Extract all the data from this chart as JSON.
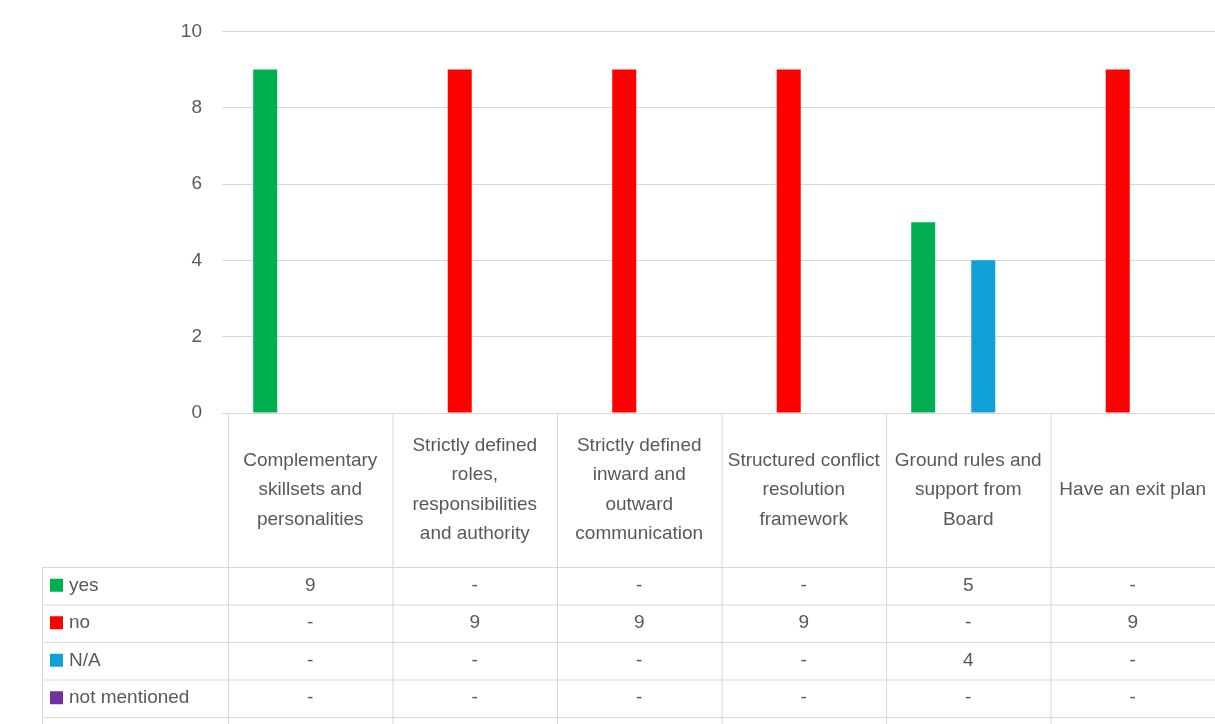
{
  "chart_data": {
    "type": "bar",
    "categories": [
      "Complementary skillsets and personalities",
      "Strictly defined roles, responsibilities and authority",
      "Strictly defined inward and outward communication",
      "Structured conflict resolution framework",
      "Ground rules and support from Board",
      "Have an exit plan"
    ],
    "series": [
      {
        "name": "yes",
        "color": "#00b050",
        "values": [
          9,
          0,
          0,
          0,
          5,
          0
        ],
        "value_labels": [
          "9",
          "-",
          "-",
          "-",
          "5",
          "-"
        ]
      },
      {
        "name": "no",
        "color": "#ff0000",
        "values": [
          0,
          9,
          9,
          9,
          0,
          9
        ],
        "value_labels": [
          "-",
          "9",
          "9",
          "9",
          "-",
          "9"
        ]
      },
      {
        "name": "N/A",
        "color": "#10a0d8",
        "values": [
          0,
          0,
          0,
          0,
          4,
          0
        ],
        "value_labels": [
          "-",
          "-",
          "-",
          "-",
          "4",
          "-"
        ]
      },
      {
        "name": "not mentioned",
        "color": "#7030a0",
        "values": [
          0,
          0,
          0,
          0,
          0,
          0
        ],
        "value_labels": [
          "-",
          "-",
          "-",
          "-",
          "-",
          "-"
        ]
      }
    ],
    "ylim": [
      0,
      10
    ],
    "yticks": [
      0,
      2,
      4,
      6,
      8,
      10
    ],
    "grid": "y",
    "legend": "bottom"
  }
}
